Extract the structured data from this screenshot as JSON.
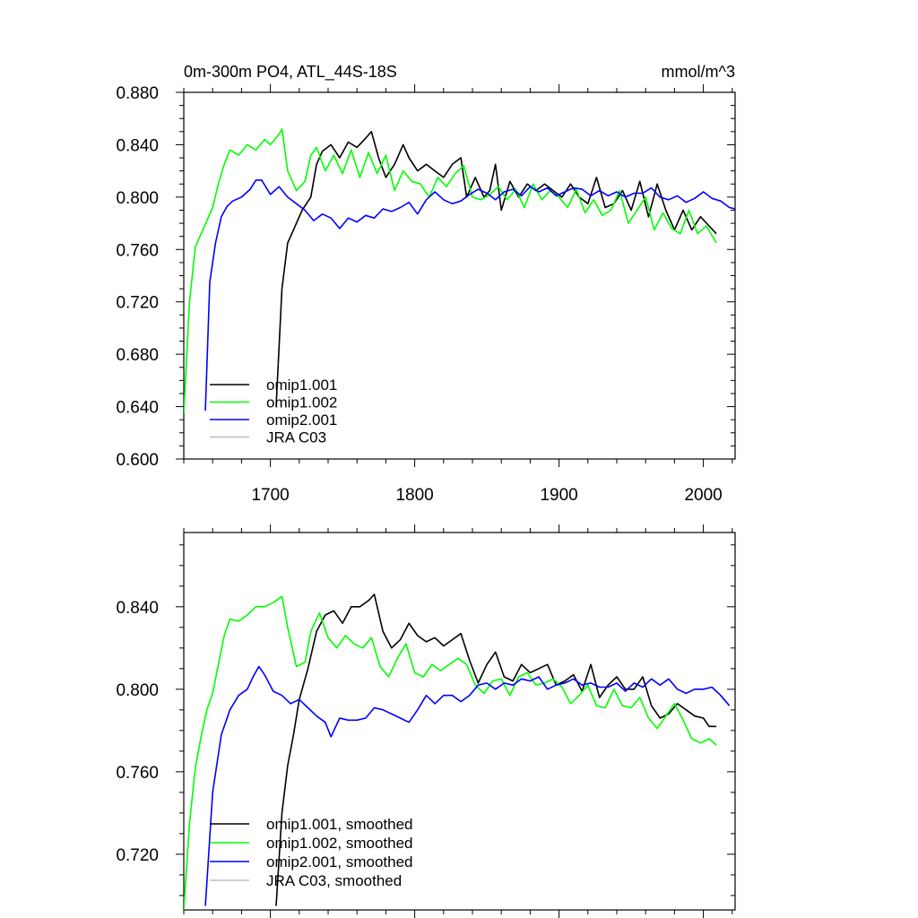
{
  "chart_data": [
    {
      "type": "line",
      "title": "0m-300m PO4, ATL_44S-18S",
      "units": "mmol/m^3",
      "xlim": [
        1640,
        2022
      ],
      "ylim": [
        0.6,
        0.88
      ],
      "xticks": [
        1700,
        1800,
        1900,
        2000
      ],
      "xtick_labels": [
        "1700",
        "1800",
        "1900",
        "2000"
      ],
      "yticks": [
        0.6,
        0.64,
        0.68,
        0.72,
        0.76,
        0.8,
        0.84,
        0.88
      ],
      "ytick_labels": [
        "0.600",
        "0.640",
        "0.680",
        "0.720",
        "0.760",
        "0.800",
        "0.840",
        "0.880"
      ],
      "legend_position": "bottom-left",
      "series": [
        {
          "name": "omip1.001",
          "color": "#000000",
          "x": [
            1704,
            1708,
            1712,
            1716,
            1722,
            1728,
            1732,
            1736,
            1742,
            1748,
            1754,
            1760,
            1766,
            1770,
            1775,
            1780,
            1786,
            1792,
            1796,
            1802,
            1808,
            1814,
            1820,
            1826,
            1832,
            1836,
            1842,
            1848,
            1852,
            1856,
            1860,
            1866,
            1872,
            1878,
            1884,
            1890,
            1896,
            1902,
            1908,
            1914,
            1920,
            1926,
            1932,
            1938,
            1944,
            1950,
            1956,
            1962,
            1968,
            1974,
            1980,
            1986,
            1992,
            1998,
            2004,
            2009
          ],
          "values": [
            0.64,
            0.73,
            0.765,
            0.775,
            0.79,
            0.8,
            0.825,
            0.835,
            0.84,
            0.83,
            0.842,
            0.838,
            0.845,
            0.85,
            0.83,
            0.815,
            0.825,
            0.84,
            0.83,
            0.82,
            0.825,
            0.82,
            0.815,
            0.825,
            0.83,
            0.8,
            0.815,
            0.8,
            0.805,
            0.825,
            0.79,
            0.812,
            0.8,
            0.81,
            0.805,
            0.81,
            0.805,
            0.8,
            0.81,
            0.8,
            0.795,
            0.815,
            0.792,
            0.795,
            0.805,
            0.79,
            0.812,
            0.785,
            0.81,
            0.79,
            0.775,
            0.79,
            0.775,
            0.785,
            0.778,
            0.772
          ]
        },
        {
          "name": "omip1.002",
          "color": "#00ff00",
          "x": [
            1640,
            1644,
            1648,
            1652,
            1656,
            1660,
            1664,
            1668,
            1672,
            1678,
            1684,
            1690,
            1696,
            1700,
            1706,
            1708,
            1712,
            1718,
            1724,
            1728,
            1732,
            1738,
            1744,
            1750,
            1756,
            1762,
            1768,
            1774,
            1780,
            1786,
            1792,
            1798,
            1804,
            1810,
            1816,
            1822,
            1828,
            1834,
            1840,
            1846,
            1852,
            1858,
            1864,
            1870,
            1876,
            1882,
            1888,
            1894,
            1900,
            1906,
            1912,
            1918,
            1924,
            1930,
            1936,
            1942,
            1948,
            1954,
            1960,
            1966,
            1972,
            1978,
            1984,
            1990,
            1996,
            2002,
            2009
          ],
          "values": [
            0.635,
            0.72,
            0.762,
            0.772,
            0.782,
            0.792,
            0.81,
            0.825,
            0.836,
            0.832,
            0.84,
            0.836,
            0.844,
            0.84,
            0.848,
            0.852,
            0.82,
            0.805,
            0.812,
            0.832,
            0.838,
            0.82,
            0.832,
            0.818,
            0.836,
            0.815,
            0.834,
            0.818,
            0.832,
            0.805,
            0.82,
            0.812,
            0.81,
            0.8,
            0.815,
            0.808,
            0.818,
            0.824,
            0.8,
            0.798,
            0.802,
            0.808,
            0.798,
            0.806,
            0.792,
            0.81,
            0.798,
            0.805,
            0.8,
            0.792,
            0.806,
            0.788,
            0.798,
            0.786,
            0.79,
            0.805,
            0.78,
            0.79,
            0.8,
            0.775,
            0.788,
            0.776,
            0.772,
            0.79,
            0.772,
            0.778,
            0.765
          ]
        },
        {
          "name": "omip2.001",
          "color": "#0000ff",
          "x": [
            1655,
            1658,
            1662,
            1666,
            1670,
            1674,
            1680,
            1686,
            1690,
            1694,
            1700,
            1706,
            1712,
            1718,
            1724,
            1730,
            1736,
            1742,
            1748,
            1754,
            1760,
            1766,
            1772,
            1778,
            1784,
            1790,
            1796,
            1802,
            1808,
            1814,
            1820,
            1826,
            1832,
            1838,
            1844,
            1850,
            1856,
            1862,
            1868,
            1874,
            1880,
            1886,
            1892,
            1898,
            1904,
            1910,
            1916,
            1922,
            1928,
            1934,
            1940,
            1946,
            1952,
            1958,
            1964,
            1970,
            1976,
            1982,
            1988,
            1994,
            2000,
            2006,
            2012,
            2018,
            2022
          ],
          "values": [
            0.637,
            0.735,
            0.765,
            0.785,
            0.793,
            0.797,
            0.8,
            0.806,
            0.813,
            0.813,
            0.802,
            0.808,
            0.8,
            0.795,
            0.79,
            0.782,
            0.787,
            0.784,
            0.776,
            0.784,
            0.781,
            0.786,
            0.784,
            0.791,
            0.789,
            0.792,
            0.796,
            0.787,
            0.798,
            0.804,
            0.798,
            0.795,
            0.797,
            0.802,
            0.806,
            0.803,
            0.798,
            0.804,
            0.806,
            0.801,
            0.808,
            0.804,
            0.807,
            0.801,
            0.804,
            0.807,
            0.806,
            0.801,
            0.805,
            0.801,
            0.804,
            0.8,
            0.803,
            0.803,
            0.807,
            0.8,
            0.798,
            0.801,
            0.796,
            0.799,
            0.804,
            0.799,
            0.797,
            0.792,
            0.791
          ]
        },
        {
          "name": "JRA C03",
          "color": "#c0c0c0",
          "x": [],
          "values": []
        }
      ]
    },
    {
      "type": "line",
      "title": "",
      "units": "",
      "xlim": [
        1640,
        2022
      ],
      "ylim": [
        0.693,
        0.876
      ],
      "xticks": [
        1700,
        1800,
        1900,
        2000
      ],
      "xtick_labels": [],
      "yticks": [
        0.72,
        0.76,
        0.8,
        0.84
      ],
      "ytick_labels": [
        "0.720",
        "0.760",
        "0.800",
        "0.840"
      ],
      "legend_position": "bottom-left",
      "series": [
        {
          "name": "omip1.001, smoothed",
          "color": "#000000",
          "x": [
            1704,
            1708,
            1712,
            1716,
            1720,
            1726,
            1732,
            1738,
            1744,
            1750,
            1756,
            1762,
            1768,
            1772,
            1778,
            1784,
            1790,
            1796,
            1802,
            1808,
            1814,
            1820,
            1826,
            1832,
            1838,
            1844,
            1850,
            1856,
            1862,
            1868,
            1874,
            1880,
            1886,
            1892,
            1898,
            1904,
            1910,
            1916,
            1922,
            1928,
            1934,
            1940,
            1946,
            1952,
            1958,
            1964,
            1970,
            1976,
            1982,
            1988,
            1994,
            2000,
            2004,
            2009
          ],
          "values": [
            0.695,
            0.74,
            0.763,
            0.778,
            0.795,
            0.81,
            0.828,
            0.836,
            0.838,
            0.832,
            0.84,
            0.84,
            0.843,
            0.846,
            0.828,
            0.82,
            0.824,
            0.832,
            0.826,
            0.823,
            0.825,
            0.821,
            0.824,
            0.827,
            0.814,
            0.803,
            0.812,
            0.818,
            0.806,
            0.804,
            0.812,
            0.808,
            0.81,
            0.812,
            0.802,
            0.804,
            0.807,
            0.799,
            0.812,
            0.796,
            0.802,
            0.806,
            0.8,
            0.8,
            0.806,
            0.792,
            0.786,
            0.788,
            0.793,
            0.79,
            0.787,
            0.786,
            0.782,
            0.782
          ]
        },
        {
          "name": "omip1.002, smoothed",
          "color": "#00ff00",
          "x": [
            1640,
            1644,
            1648,
            1652,
            1656,
            1660,
            1664,
            1668,
            1672,
            1678,
            1684,
            1690,
            1696,
            1702,
            1708,
            1712,
            1718,
            1724,
            1728,
            1734,
            1740,
            1746,
            1752,
            1758,
            1764,
            1770,
            1776,
            1782,
            1788,
            1794,
            1800,
            1806,
            1812,
            1818,
            1824,
            1830,
            1836,
            1842,
            1848,
            1854,
            1860,
            1866,
            1872,
            1878,
            1884,
            1890,
            1896,
            1902,
            1908,
            1914,
            1920,
            1926,
            1932,
            1938,
            1944,
            1950,
            1956,
            1962,
            1968,
            1974,
            1980,
            1986,
            1992,
            1998,
            2004,
            2009
          ],
          "values": [
            0.693,
            0.735,
            0.762,
            0.777,
            0.79,
            0.798,
            0.812,
            0.826,
            0.834,
            0.833,
            0.836,
            0.84,
            0.84,
            0.842,
            0.845,
            0.83,
            0.811,
            0.813,
            0.828,
            0.837,
            0.825,
            0.82,
            0.826,
            0.822,
            0.82,
            0.825,
            0.811,
            0.806,
            0.815,
            0.822,
            0.808,
            0.806,
            0.812,
            0.809,
            0.812,
            0.815,
            0.812,
            0.802,
            0.798,
            0.804,
            0.805,
            0.797,
            0.806,
            0.808,
            0.802,
            0.803,
            0.805,
            0.801,
            0.793,
            0.797,
            0.802,
            0.792,
            0.791,
            0.8,
            0.792,
            0.791,
            0.796,
            0.786,
            0.781,
            0.787,
            0.793,
            0.785,
            0.776,
            0.774,
            0.776,
            0.773
          ]
        },
        {
          "name": "omip2.001, smoothed",
          "color": "#0000ff",
          "x": [
            1655,
            1660,
            1666,
            1672,
            1678,
            1684,
            1688,
            1692,
            1696,
            1702,
            1708,
            1714,
            1720,
            1726,
            1732,
            1738,
            1742,
            1748,
            1754,
            1760,
            1766,
            1772,
            1778,
            1784,
            1790,
            1796,
            1802,
            1808,
            1814,
            1820,
            1826,
            1832,
            1838,
            1844,
            1850,
            1856,
            1862,
            1868,
            1874,
            1880,
            1886,
            1892,
            1898,
            1904,
            1910,
            1916,
            1922,
            1928,
            1934,
            1940,
            1946,
            1952,
            1958,
            1964,
            1970,
            1976,
            1982,
            1988,
            1994,
            2000,
            2006,
            2012,
            2018
          ],
          "values": [
            0.695,
            0.75,
            0.778,
            0.79,
            0.797,
            0.8,
            0.806,
            0.811,
            0.807,
            0.799,
            0.797,
            0.793,
            0.795,
            0.791,
            0.787,
            0.784,
            0.777,
            0.786,
            0.785,
            0.785,
            0.786,
            0.791,
            0.79,
            0.788,
            0.786,
            0.784,
            0.79,
            0.797,
            0.793,
            0.797,
            0.797,
            0.794,
            0.797,
            0.802,
            0.803,
            0.8,
            0.803,
            0.802,
            0.805,
            0.804,
            0.806,
            0.8,
            0.802,
            0.803,
            0.805,
            0.802,
            0.803,
            0.801,
            0.801,
            0.803,
            0.799,
            0.803,
            0.801,
            0.805,
            0.802,
            0.805,
            0.8,
            0.798,
            0.8,
            0.8,
            0.801,
            0.797,
            0.792
          ]
        },
        {
          "name": "JRA C03, smoothed",
          "color": "#c0c0c0",
          "x": [],
          "values": []
        }
      ]
    }
  ]
}
